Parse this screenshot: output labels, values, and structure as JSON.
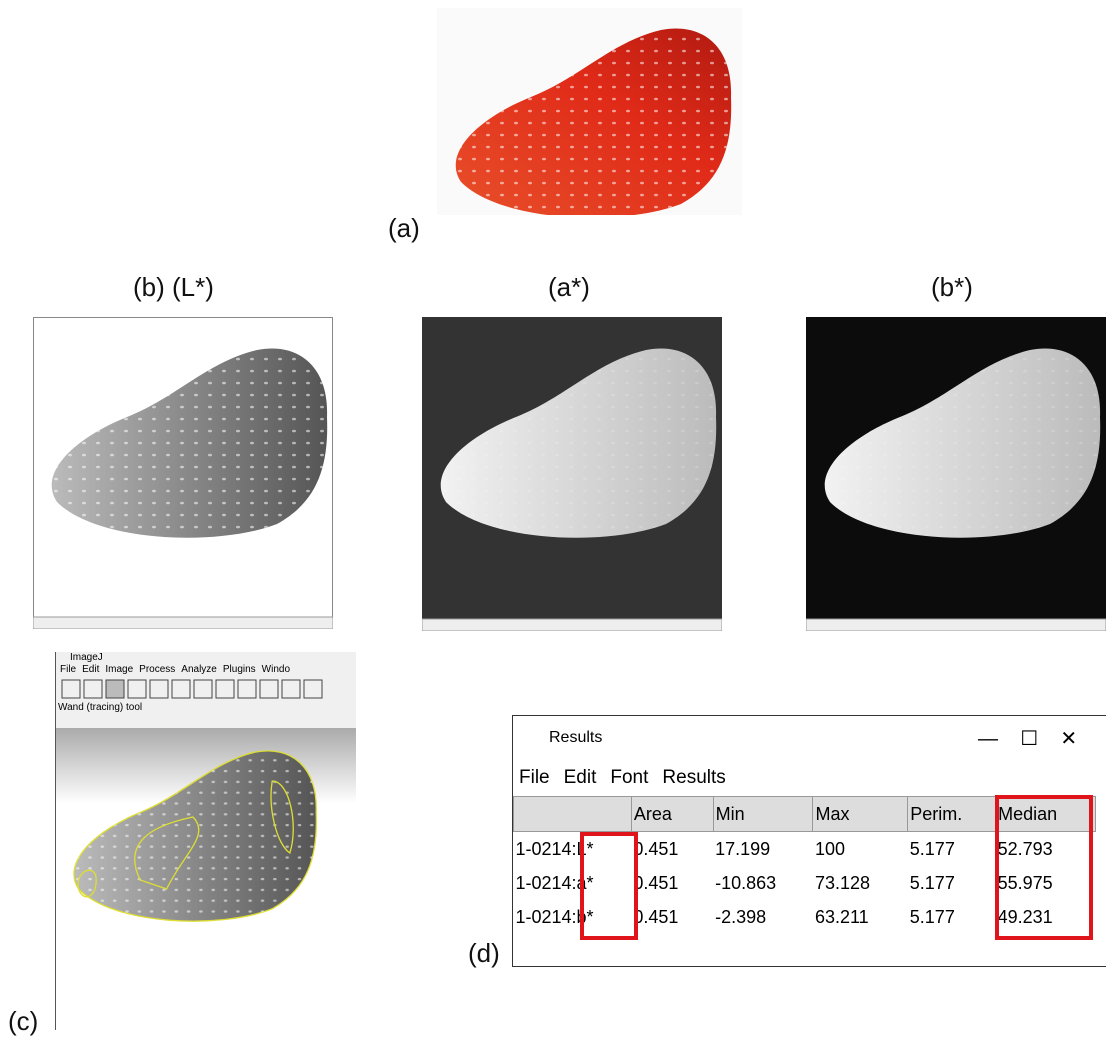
{
  "panels": {
    "a": "(a)",
    "b": "(b) (L*)",
    "a_star": "(a*)",
    "b_star": "(b*)",
    "c": "(c)",
    "d": "(d)"
  },
  "imagej": {
    "title": "ImageJ",
    "menu": [
      "File",
      "Edit",
      "Image",
      "Process",
      "Analyze",
      "Plugins",
      "Windo"
    ],
    "status": "Wand (tracing) tool"
  },
  "results": {
    "title": "Results",
    "menu": [
      "File",
      "Edit",
      "Font",
      "Results"
    ],
    "columns": [
      "Area",
      "Min",
      "Max",
      "Perim.",
      "Median"
    ],
    "rows": [
      [
        "1-0214:L*",
        "0.451",
        "17.199",
        "100",
        "5.177",
        "52.793"
      ],
      [
        "1-0214:a*",
        "0.451",
        "-10.863",
        "73.128",
        "5.177",
        "55.975"
      ],
      [
        "1-0214:b*",
        "0.451",
        "-2.398",
        "63.211",
        "5.177",
        "49.231"
      ]
    ]
  }
}
